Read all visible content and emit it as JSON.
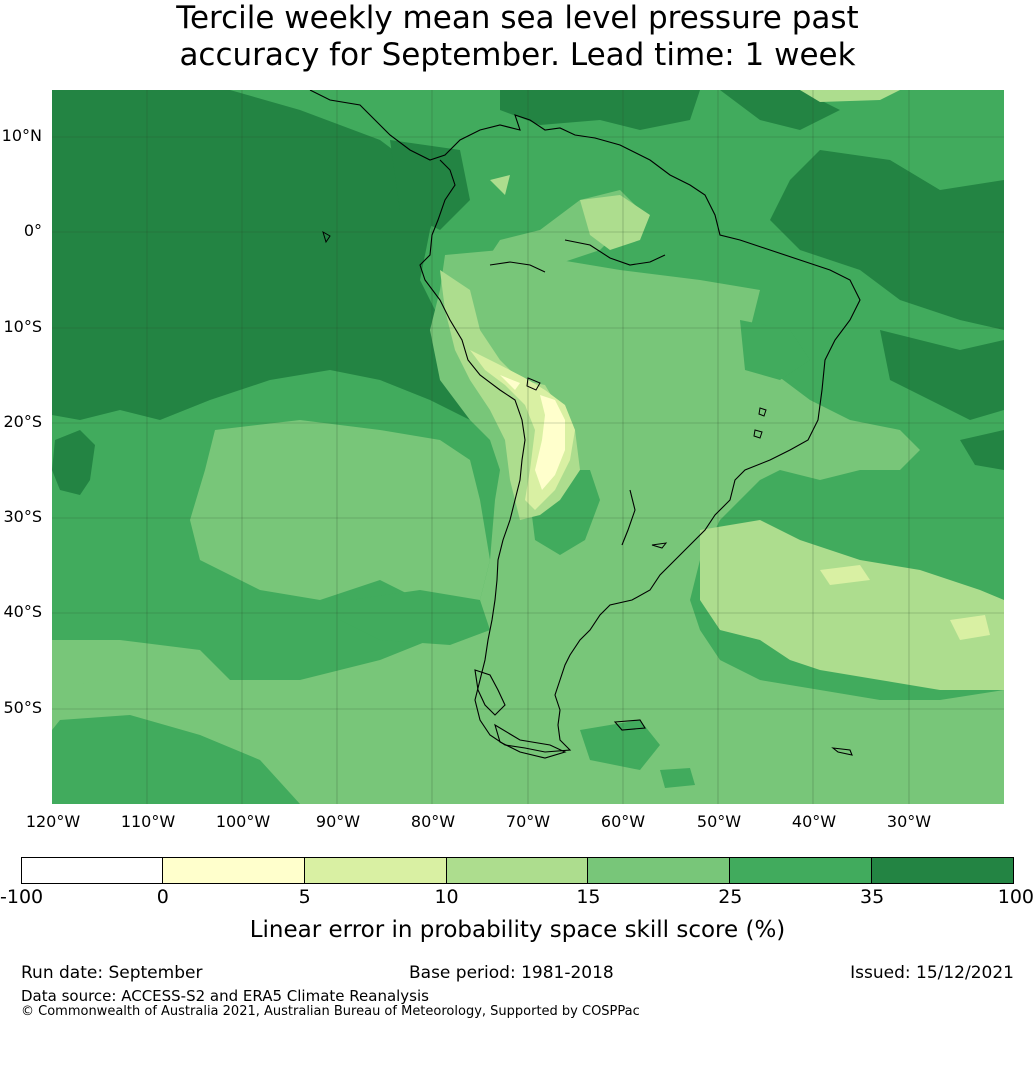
{
  "title": {
    "line1": "Tercile weekly mean sea level pressure past",
    "line2": "accuracy for September. Lead time: 1 week"
  },
  "map": {
    "lat_labels": [
      "10°N",
      "0°",
      "10°S",
      "20°S",
      "30°S",
      "40°S",
      "50°S"
    ],
    "lon_labels": [
      "120°W",
      "110°W",
      "100°W",
      "90°W",
      "80°W",
      "70°W",
      "60°W",
      "50°W",
      "40°W",
      "30°W"
    ],
    "extent": {
      "lon": [
        -120,
        -20
      ],
      "lat": [
        -60,
        15
      ]
    },
    "gridlines": true,
    "coastlines": true
  },
  "colorbar": {
    "title": "Linear error in probability space skill score (%)",
    "ticks": [
      "-100",
      "0",
      "5",
      "10",
      "15",
      "25",
      "35",
      "100"
    ],
    "bins": [
      {
        "from": -100,
        "to": 0,
        "color": "#ffffff"
      },
      {
        "from": 0,
        "to": 5,
        "color": "#ffffcc"
      },
      {
        "from": 5,
        "to": 10,
        "color": "#d9f0a3"
      },
      {
        "from": 10,
        "to": 15,
        "color": "#addd8e"
      },
      {
        "from": 15,
        "to": 25,
        "color": "#78c679"
      },
      {
        "from": 25,
        "to": 35,
        "color": "#41ab5d"
      },
      {
        "from": 35,
        "to": 100,
        "color": "#238443"
      }
    ]
  },
  "footer": {
    "run_date": "Run date: September",
    "base_period": "Base period: 1981-2018",
    "issued": "Issued: 15/12/2021",
    "data_source": "Data source: ACCESS-S2 and ERA5 Climate Reanalysis",
    "copyright": "© Commonwealth of Australia 2021, Australian Bureau of Meteorology, Supported by COSPPac"
  }
}
